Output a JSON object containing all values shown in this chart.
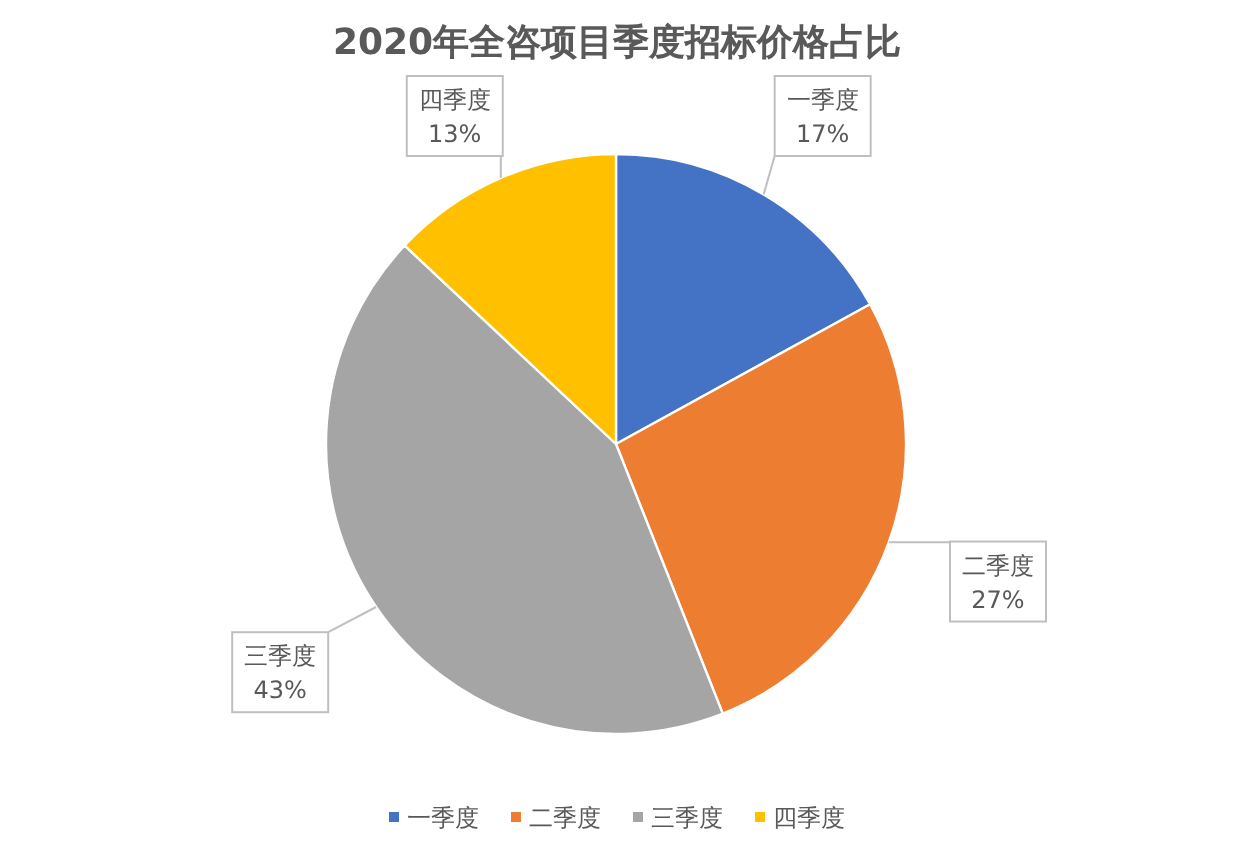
{
  "chart_data": {
    "type": "pie",
    "title": "2020年全咨项目季度招标价格占比",
    "categories": [
      "一季度",
      "二季度",
      "三季度",
      "四季度"
    ],
    "values": [
      17,
      27,
      43,
      13
    ],
    "value_labels": [
      "17%",
      "27%",
      "43%",
      "13%"
    ],
    "colors": [
      "#4472c4",
      "#ed7d31",
      "#a5a5a5",
      "#ffc000"
    ],
    "legend": "bottom"
  }
}
